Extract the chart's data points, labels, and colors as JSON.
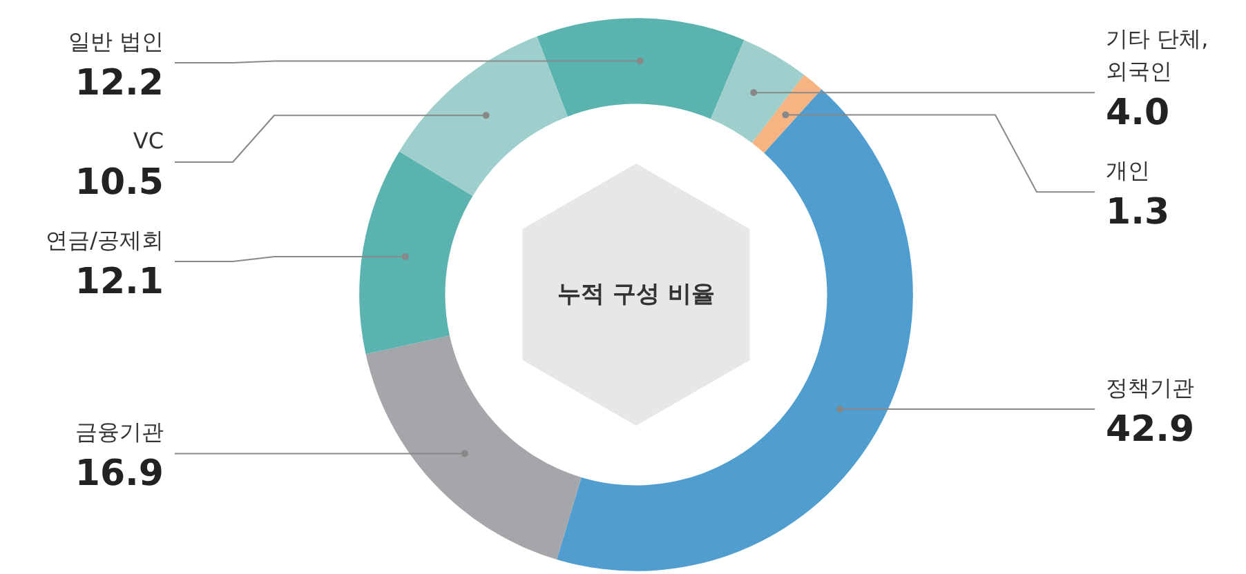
{
  "chart_data": {
    "type": "donut",
    "title": "누적 구성 비율",
    "categories": [
      "일반 법인",
      "기타 단체,\n외국인",
      "개인",
      "정책기관",
      "금융기관",
      "연금/공제회",
      "VC"
    ],
    "values": [
      12.2,
      4.0,
      1.3,
      42.9,
      16.9,
      12.1,
      10.5
    ],
    "colors": [
      "#5ab3af",
      "#9ecfcd",
      "#f5b482",
      "#4f9ecf",
      "#a5a6aa",
      "#5ab3af",
      "#9ecfcd"
    ],
    "value_labels": [
      "12.2",
      "4.0",
      "1.3",
      "42.9",
      "16.9",
      "12.1",
      "10.5"
    ]
  }
}
